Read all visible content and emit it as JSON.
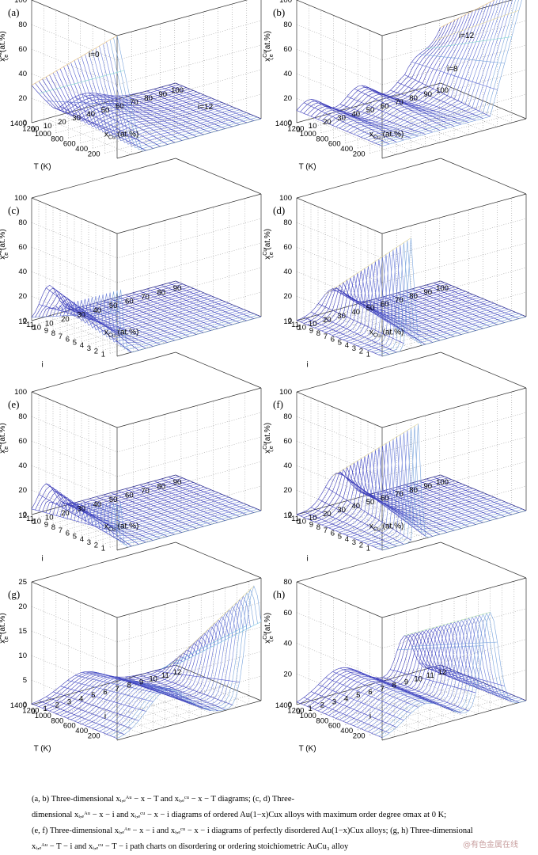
{
  "figure": {
    "caption_lines": [
      "(a,  b)  Three-dimensional  xᵢ,ₑᴬᵘ − x − T   and   xᵢ,ₑᶜᵘ − x − T   diagrams;  (c,  d)  Three-",
      "dimensional  xᵢ,ₑᴬᵘ − x − i  and  xᵢ,ₑᶜᵘ − x − i  diagrams of ordered Au(1−x)Cux alloys with maximum order degree σmax at 0 K;",
      "(e, f) Three-dimensional  xᵢ,ₑᴬᵘ − x − i  and  xᵢ,ₑᶜᵘ − x − i  diagrams of perfectly disordered Au(1−x)Cux alloys; (g, h) Three-dimensional",
      "xᵢ,ₑᴬᵘ − T − i   and   xᵢ,ₑᶜᵘ − T − i  path charts on disordering or ordering stoichiometric AuCu₃ alloy"
    ],
    "watermark": "@有色金属在线"
  },
  "chart_data": [
    {
      "panel": "(a)",
      "type": "surface",
      "element": "Au",
      "zlabel": "x",
      "zlabel_sup": "Au",
      "zlabel_sub": "i,e",
      "zlabel_unit": "(at.%)",
      "ylabel": "T  (K)",
      "xlabel": "x",
      "xlabel_sub": "Cu",
      "xlabel_unit": "(at.%)",
      "zlim": [
        0,
        100
      ],
      "zticks": [
        "0",
        "20",
        "40",
        "60",
        "80",
        "100"
      ],
      "xticks": [
        "0",
        "10",
        "20",
        "30",
        "40",
        "50",
        "60",
        "70",
        "80",
        "90",
        "100"
      ],
      "yticks": [
        "200",
        "400",
        "600",
        "800",
        "1000",
        "1200",
        "1400"
      ],
      "annotations": [
        "i=0",
        "i=12"
      ],
      "grid": true
    },
    {
      "panel": "(b)",
      "type": "surface",
      "element": "Cu",
      "zlabel": "x",
      "zlabel_sup": "Cu",
      "zlabel_sub": "i,e",
      "zlabel_unit": "(at.%)",
      "ylabel": "T  (K)",
      "xlabel": "x",
      "xlabel_sub": "Cu",
      "xlabel_unit": "(at.%)",
      "zlim": [
        0,
        100
      ],
      "zticks": [
        "0",
        "20",
        "40",
        "60",
        "80",
        "100"
      ],
      "xticks": [
        "0",
        "10",
        "20",
        "30",
        "40",
        "50",
        "60",
        "70",
        "80",
        "90",
        "100"
      ],
      "yticks": [
        "200",
        "400",
        "600",
        "800",
        "1000",
        "1200",
        "1400"
      ],
      "annotations": [
        "i=12",
        "i=8"
      ],
      "grid": true
    },
    {
      "panel": "(c)",
      "type": "surface",
      "element": "Au",
      "zlabel": "x",
      "zlabel_sup": "Au",
      "zlabel_sub": "i,e",
      "zlabel_unit": "(at.%)",
      "ylabel": "i",
      "xlabel": "x",
      "xlabel_sub": "Cu",
      "xlabel_unit": "(at.%)",
      "zlim": [
        0,
        100
      ],
      "zticks": [
        "0",
        "20",
        "40",
        "60",
        "80",
        "100"
      ],
      "xticks": [
        "0",
        "10",
        "20",
        "30",
        "40",
        "50",
        "60",
        "70",
        "80",
        "90"
      ],
      "yticks": [
        "1",
        "2",
        "3",
        "4",
        "5",
        "6",
        "7",
        "8",
        "9",
        "10",
        "11",
        "12"
      ],
      "annotations": [],
      "grid": true
    },
    {
      "panel": "(d)",
      "type": "surface",
      "element": "Cu",
      "zlabel": "x",
      "zlabel_sup": "Cu",
      "zlabel_sub": "i,e",
      "zlabel_unit": "(at.%)",
      "ylabel": "i",
      "xlabel": "x",
      "xlabel_sub": "Cu",
      "xlabel_unit": "(at.%)",
      "zlim": [
        0,
        100
      ],
      "zticks": [
        "0",
        "20",
        "40",
        "60",
        "80",
        "100"
      ],
      "xticks": [
        "0",
        "10",
        "20",
        "30",
        "40",
        "50",
        "60",
        "70",
        "80",
        "90",
        "100"
      ],
      "yticks": [
        "1",
        "2",
        "3",
        "4",
        "5",
        "6",
        "7",
        "8",
        "9",
        "10",
        "11",
        "12"
      ],
      "annotations": [],
      "grid": true
    },
    {
      "panel": "(e)",
      "type": "surface",
      "element": "Au",
      "zlabel": "x",
      "zlabel_sup": "Au",
      "zlabel_sub": "i,e",
      "zlabel_unit": "(at.%)",
      "ylabel": "i",
      "xlabel": "x",
      "xlabel_sub": "Cu",
      "xlabel_unit": "(at.%)",
      "zlim": [
        0,
        100
      ],
      "zticks": [
        "0",
        "20",
        "40",
        "60",
        "80",
        "100"
      ],
      "xticks": [
        "0",
        "10",
        "20",
        "30",
        "40",
        "50",
        "60",
        "70",
        "80",
        "90"
      ],
      "yticks": [
        "1",
        "2",
        "3",
        "4",
        "5",
        "6",
        "7",
        "8",
        "9",
        "10",
        "11",
        "12"
      ],
      "annotations": [],
      "grid": true
    },
    {
      "panel": "(f)",
      "type": "surface",
      "element": "Cu",
      "zlabel": "x",
      "zlabel_sup": "Cu",
      "zlabel_sub": "i,e",
      "zlabel_unit": "(at.%)",
      "ylabel": "i",
      "xlabel": "x",
      "xlabel_sub": "Cu",
      "xlabel_unit": "(at.%)",
      "zlim": [
        0,
        100
      ],
      "zticks": [
        "0",
        "20",
        "40",
        "60",
        "80",
        "100"
      ],
      "xticks": [
        "0",
        "10",
        "20",
        "30",
        "40",
        "50",
        "60",
        "70",
        "80",
        "90",
        "100"
      ],
      "yticks": [
        "1",
        "2",
        "3",
        "4",
        "5",
        "6",
        "7",
        "8",
        "9",
        "10",
        "11",
        "12"
      ],
      "annotations": [],
      "grid": true
    },
    {
      "panel": "(g)",
      "type": "surface",
      "element": "Au",
      "zlabel": "x",
      "zlabel_sup": "Au",
      "zlabel_sub": "i,e",
      "zlabel_unit": "(at.%)",
      "ylabel": "T  (K)",
      "xlabel": "i",
      "xlabel_sub": "",
      "xlabel_unit": "",
      "zlim": [
        0,
        25
      ],
      "zticks": [
        "0",
        "5",
        "10",
        "15",
        "20",
        "25"
      ],
      "xticks": [
        "0",
        "1",
        "2",
        "3",
        "4",
        "5",
        "6",
        "7",
        "8",
        "9",
        "10",
        "11",
        "12"
      ],
      "yticks": [
        "200",
        "400",
        "600",
        "800",
        "1000",
        "1200",
        "1400"
      ],
      "annotations": [],
      "grid": true
    },
    {
      "panel": "(h)",
      "type": "surface",
      "element": "Cu",
      "zlabel": "x",
      "zlabel_sup": "Cu",
      "zlabel_sub": "i,e",
      "zlabel_unit": "(at.%)",
      "ylabel": "T  (K)",
      "xlabel": "i",
      "xlabel_sub": "",
      "xlabel_unit": "",
      "zlim": [
        0,
        80
      ],
      "zticks": [
        "0",
        "20",
        "40",
        "60",
        "80"
      ],
      "xticks": [
        "0",
        "1",
        "2",
        "3",
        "4",
        "5",
        "6",
        "7",
        "8",
        "9",
        "10",
        "11",
        "12"
      ],
      "yticks": [
        "200",
        "400",
        "600",
        "800",
        "1000",
        "1200",
        "1400"
      ],
      "annotations": [],
      "grid": true
    }
  ]
}
